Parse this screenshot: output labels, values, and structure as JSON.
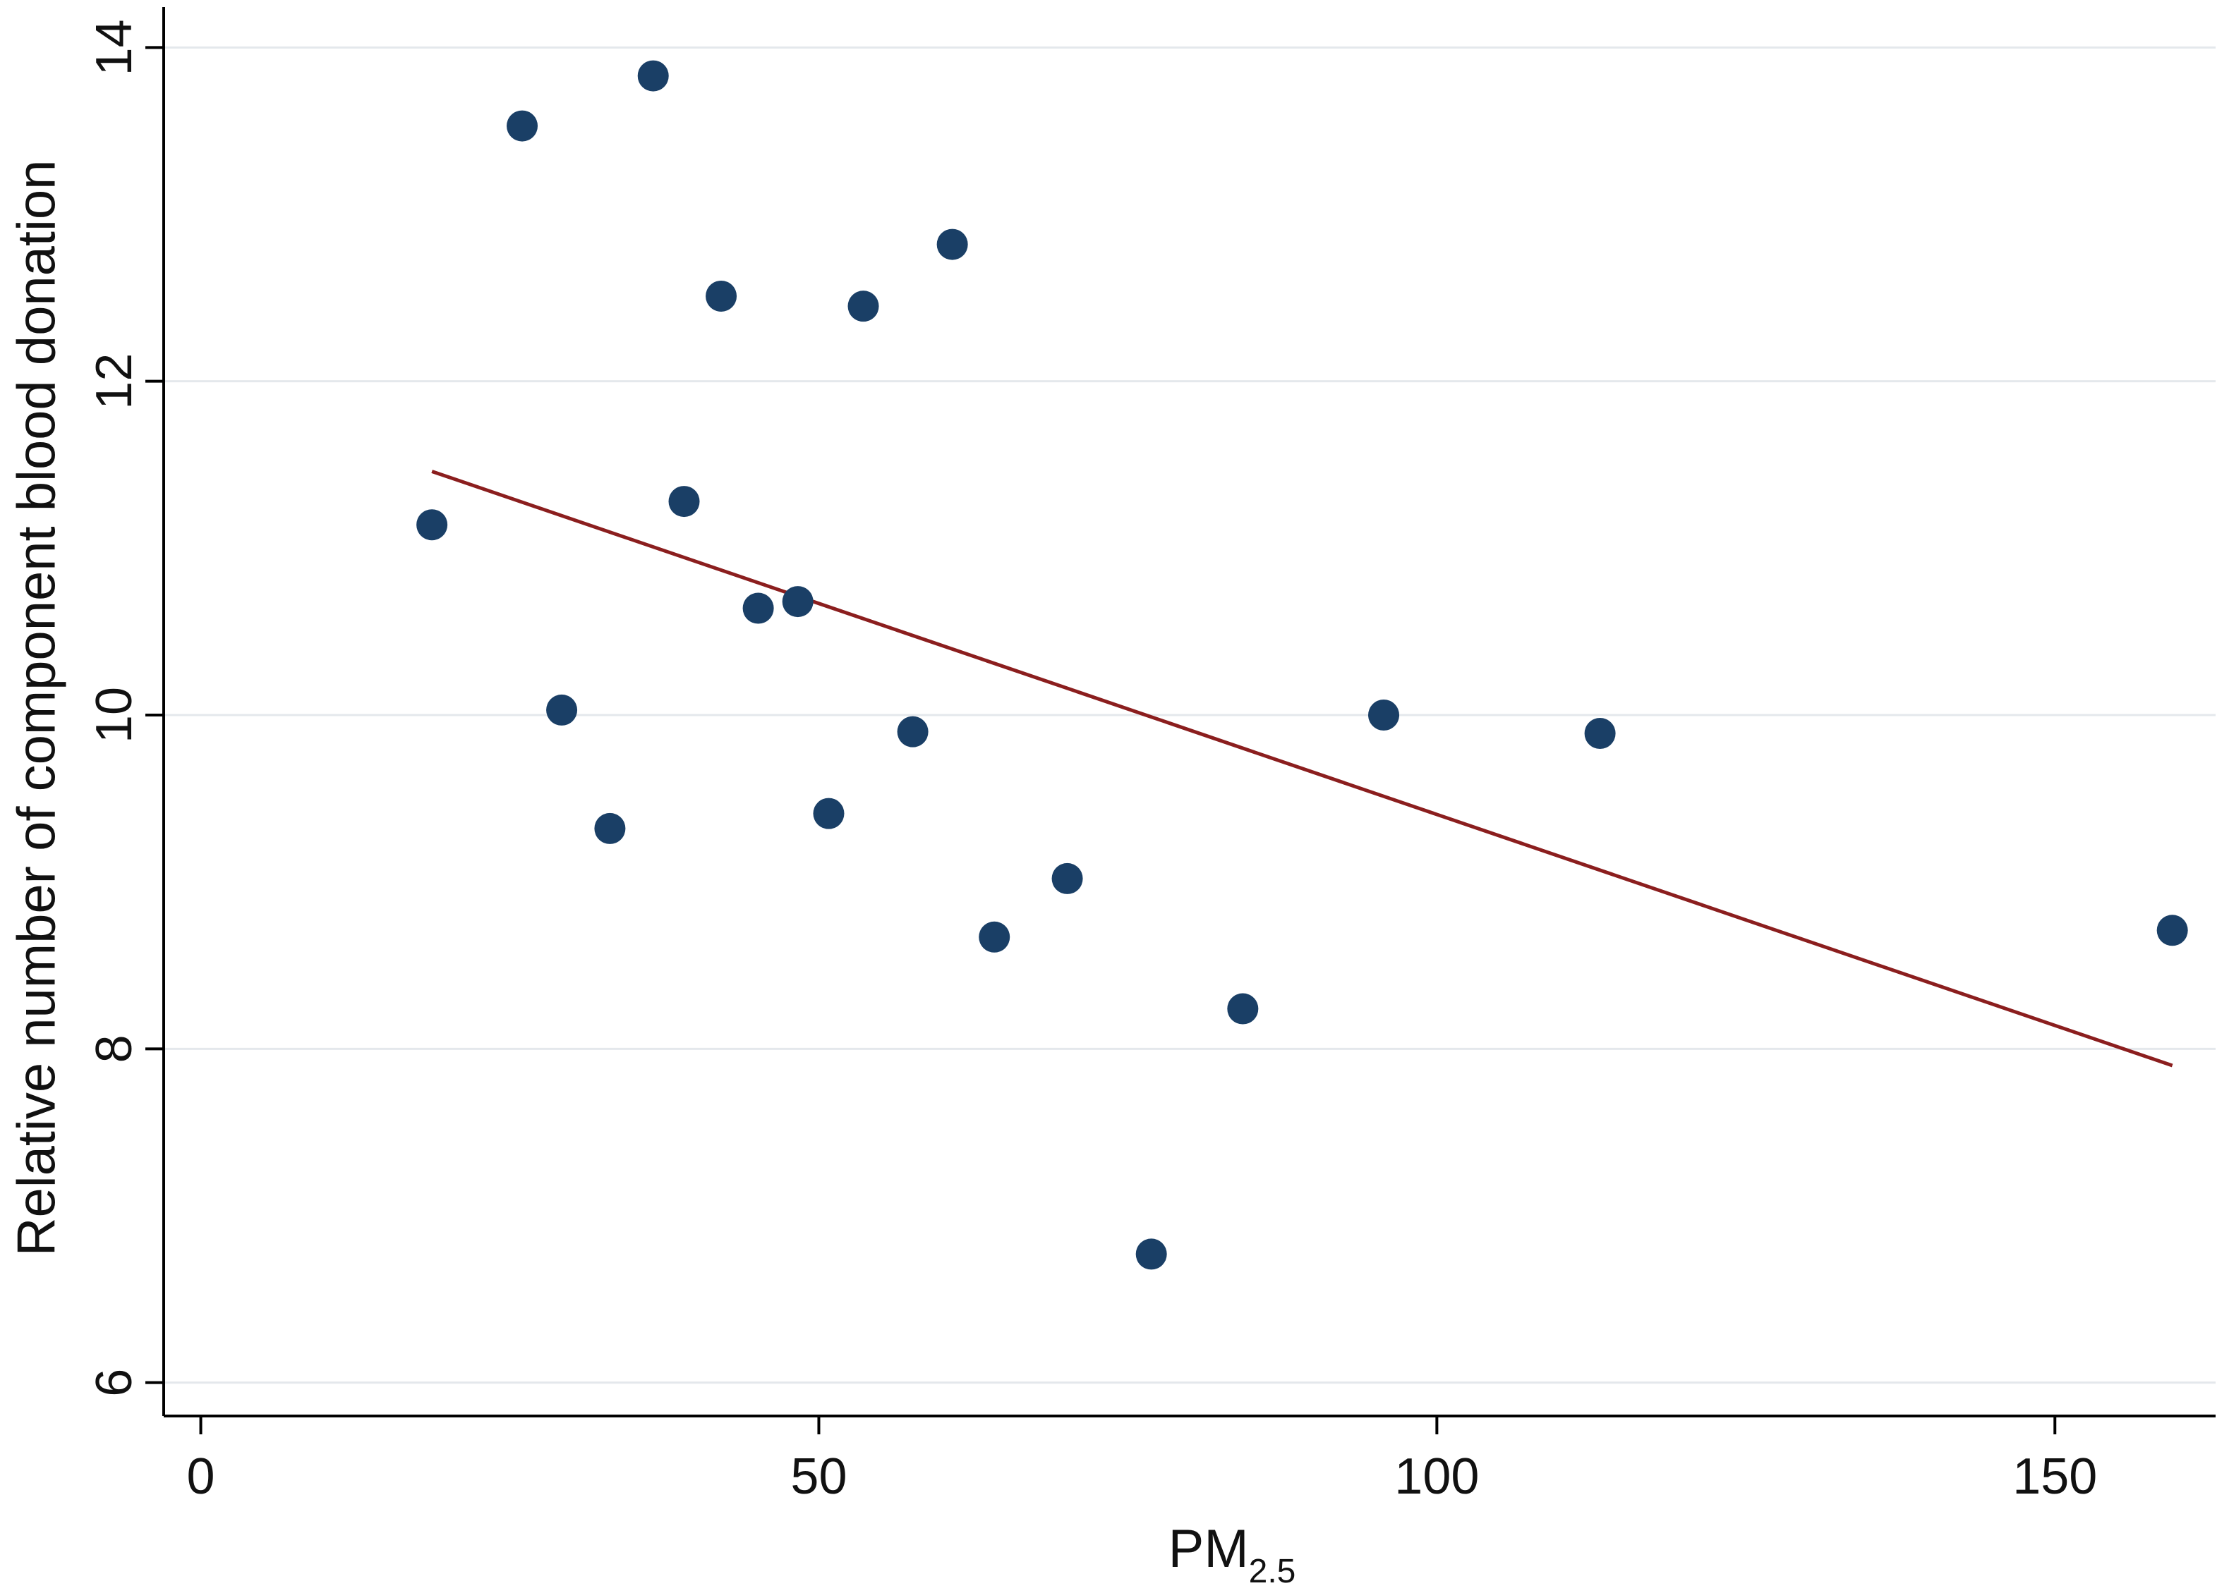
{
  "chart_data": {
    "type": "scatter",
    "xlabel": "PM",
    "xlabel_subscript": "2.5",
    "ylabel": "Relative number of component blood donation",
    "xlim": [
      -3,
      163
    ],
    "ylim": [
      5.8,
      14.2
    ],
    "x_ticks": [
      0,
      50,
      100,
      150
    ],
    "x_tick_labels": [
      "0",
      "50",
      "100",
      "150"
    ],
    "y_ticks": [
      6,
      8,
      10,
      12,
      14
    ],
    "y_tick_labels": [
      "6",
      "8",
      "10",
      "12",
      "14"
    ],
    "grid": "horizontal",
    "point_color": "#1a3f66",
    "line_color": "#8b1e1e",
    "points": [
      {
        "x": 18.7,
        "y": 11.14
      },
      {
        "x": 26.0,
        "y": 13.53
      },
      {
        "x": 29.2,
        "y": 10.03
      },
      {
        "x": 33.1,
        "y": 9.32
      },
      {
        "x": 36.6,
        "y": 13.83
      },
      {
        "x": 39.1,
        "y": 11.28
      },
      {
        "x": 42.1,
        "y": 12.51
      },
      {
        "x": 45.1,
        "y": 10.64
      },
      {
        "x": 48.3,
        "y": 10.68
      },
      {
        "x": 50.8,
        "y": 9.41
      },
      {
        "x": 53.6,
        "y": 12.45
      },
      {
        "x": 57.6,
        "y": 9.9
      },
      {
        "x": 60.8,
        "y": 12.82
      },
      {
        "x": 64.2,
        "y": 8.67
      },
      {
        "x": 70.1,
        "y": 9.02
      },
      {
        "x": 76.9,
        "y": 6.77
      },
      {
        "x": 84.3,
        "y": 8.24
      },
      {
        "x": 95.7,
        "y": 10.0
      },
      {
        "x": 113.2,
        "y": 9.89
      },
      {
        "x": 159.5,
        "y": 8.71
      }
    ],
    "fit_line": {
      "x": [
        18.7,
        159.5
      ],
      "y": [
        11.46,
        7.9
      ]
    }
  }
}
